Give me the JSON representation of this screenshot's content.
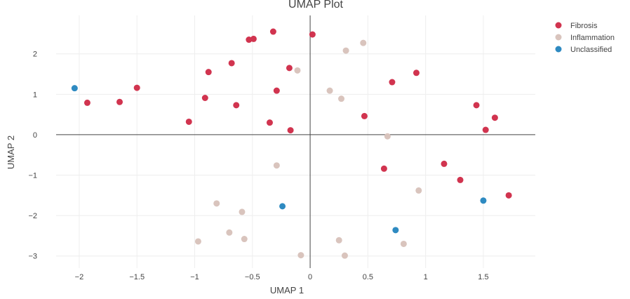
{
  "chart_data": {
    "type": "scatter",
    "title": "UMAP Plot",
    "xlabel": "UMAP 1",
    "ylabel": "UMAP 2",
    "xlim": [
      -2.2,
      1.95
    ],
    "ylim": [
      -3.3,
      2.95
    ],
    "xticks": [
      -2,
      -1.5,
      -1,
      -0.5,
      0,
      0.5,
      1,
      1.5
    ],
    "xtick_labels": [
      "−2",
      "−1.5",
      "−1",
      "−0.5",
      "0",
      "0.5",
      "1",
      "1.5"
    ],
    "yticks": [
      -3,
      -2,
      -1,
      0,
      1,
      2
    ],
    "ytick_labels": [
      "−3",
      "−2",
      "−1",
      "0",
      "1",
      "2"
    ],
    "grid": true,
    "zero_lines": true,
    "legend_position": "top-right",
    "series": [
      {
        "name": "Fibrosis",
        "color": "#d1344f",
        "points": [
          [
            -0.32,
            2.55
          ],
          [
            0.02,
            2.48
          ],
          [
            -0.53,
            2.35
          ],
          [
            -0.49,
            2.37
          ],
          [
            -0.68,
            1.77
          ],
          [
            -0.88,
            1.55
          ],
          [
            -0.18,
            1.65
          ],
          [
            -1.5,
            1.16
          ],
          [
            -1.65,
            0.81
          ],
          [
            -1.93,
            0.79
          ],
          [
            -0.91,
            0.91
          ],
          [
            -0.64,
            0.73
          ],
          [
            -0.29,
            1.09
          ],
          [
            -1.05,
            0.32
          ],
          [
            -0.35,
            0.3
          ],
          [
            -0.17,
            0.11
          ],
          [
            0.47,
            0.46
          ],
          [
            0.71,
            1.3
          ],
          [
            0.92,
            1.53
          ],
          [
            1.44,
            0.73
          ],
          [
            1.6,
            0.42
          ],
          [
            1.52,
            0.12
          ],
          [
            0.64,
            -0.84
          ],
          [
            1.16,
            -0.72
          ],
          [
            1.3,
            -1.12
          ],
          [
            1.72,
            -1.5
          ]
        ]
      },
      {
        "name": "Inflammation",
        "color": "#d9c4bd",
        "points": [
          [
            0.46,
            2.27
          ],
          [
            0.31,
            2.08
          ],
          [
            -0.11,
            1.59
          ],
          [
            0.17,
            1.09
          ],
          [
            0.27,
            0.89
          ],
          [
            0.67,
            -0.04
          ],
          [
            -0.29,
            -0.76
          ],
          [
            0.94,
            -1.38
          ],
          [
            -0.81,
            -1.7
          ],
          [
            -0.59,
            -1.91
          ],
          [
            -0.7,
            -2.42
          ],
          [
            -0.57,
            -2.58
          ],
          [
            -0.97,
            -2.64
          ],
          [
            0.25,
            -2.61
          ],
          [
            0.81,
            -2.7
          ],
          [
            -0.08,
            -2.98
          ],
          [
            0.3,
            -2.99
          ]
        ]
      },
      {
        "name": "Unclassified",
        "color": "#2e8ac1",
        "points": [
          [
            -2.04,
            1.15
          ],
          [
            -0.24,
            -1.77
          ],
          [
            0.74,
            -2.36
          ],
          [
            1.5,
            -1.63
          ]
        ]
      }
    ]
  }
}
